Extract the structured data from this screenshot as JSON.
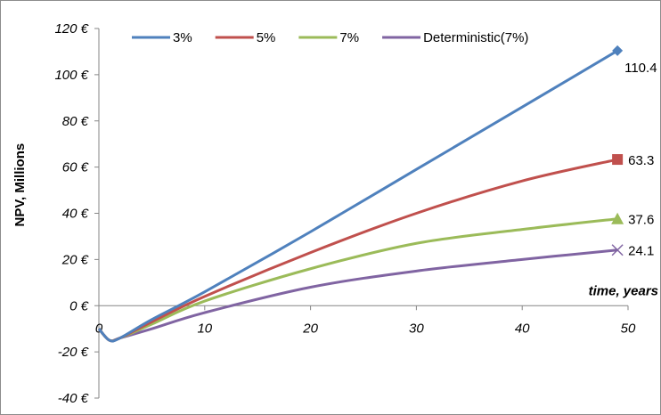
{
  "chart_data": {
    "type": "line",
    "title": "",
    "xlabel": "time, years",
    "ylabel": "NPV, Millions",
    "xlim": [
      0,
      50
    ],
    "ylim": [
      -40,
      120
    ],
    "x_ticks": [
      "0",
      "10",
      "20",
      "30",
      "40",
      "50"
    ],
    "y_ticks": [
      "120 €",
      "100 €",
      "80 €",
      "60 €",
      "40 €",
      "20 €",
      "0 €",
      "-20 €",
      "-40 €"
    ],
    "grid": false,
    "legend_position": "top",
    "x": [
      0,
      1,
      2,
      5,
      10,
      20,
      30,
      40,
      49
    ],
    "series": [
      {
        "name": "3%",
        "color": "#4f81bd",
        "marker": "diamond",
        "end_label": "110.4",
        "values": [
          -10,
          -15,
          -14,
          -6,
          6,
          32,
          59,
          86,
          110.4
        ]
      },
      {
        "name": "5%",
        "color": "#c0504d",
        "marker": "square",
        "end_label": "63.3",
        "values": [
          -10,
          -15,
          -14,
          -7,
          4,
          23,
          40,
          54,
          63.3
        ]
      },
      {
        "name": "7%",
        "color": "#9bbb59",
        "marker": "triangle",
        "end_label": "37.6",
        "values": [
          -10,
          -15,
          -14,
          -8,
          2,
          16,
          27,
          33,
          37.6
        ]
      },
      {
        "name": "Deterministic(7%)",
        "color": "#8064a2",
        "marker": "x",
        "end_label": "24.1",
        "values": [
          -10,
          -15,
          -14,
          -10,
          -3,
          8,
          15,
          20,
          24.1
        ]
      }
    ]
  }
}
